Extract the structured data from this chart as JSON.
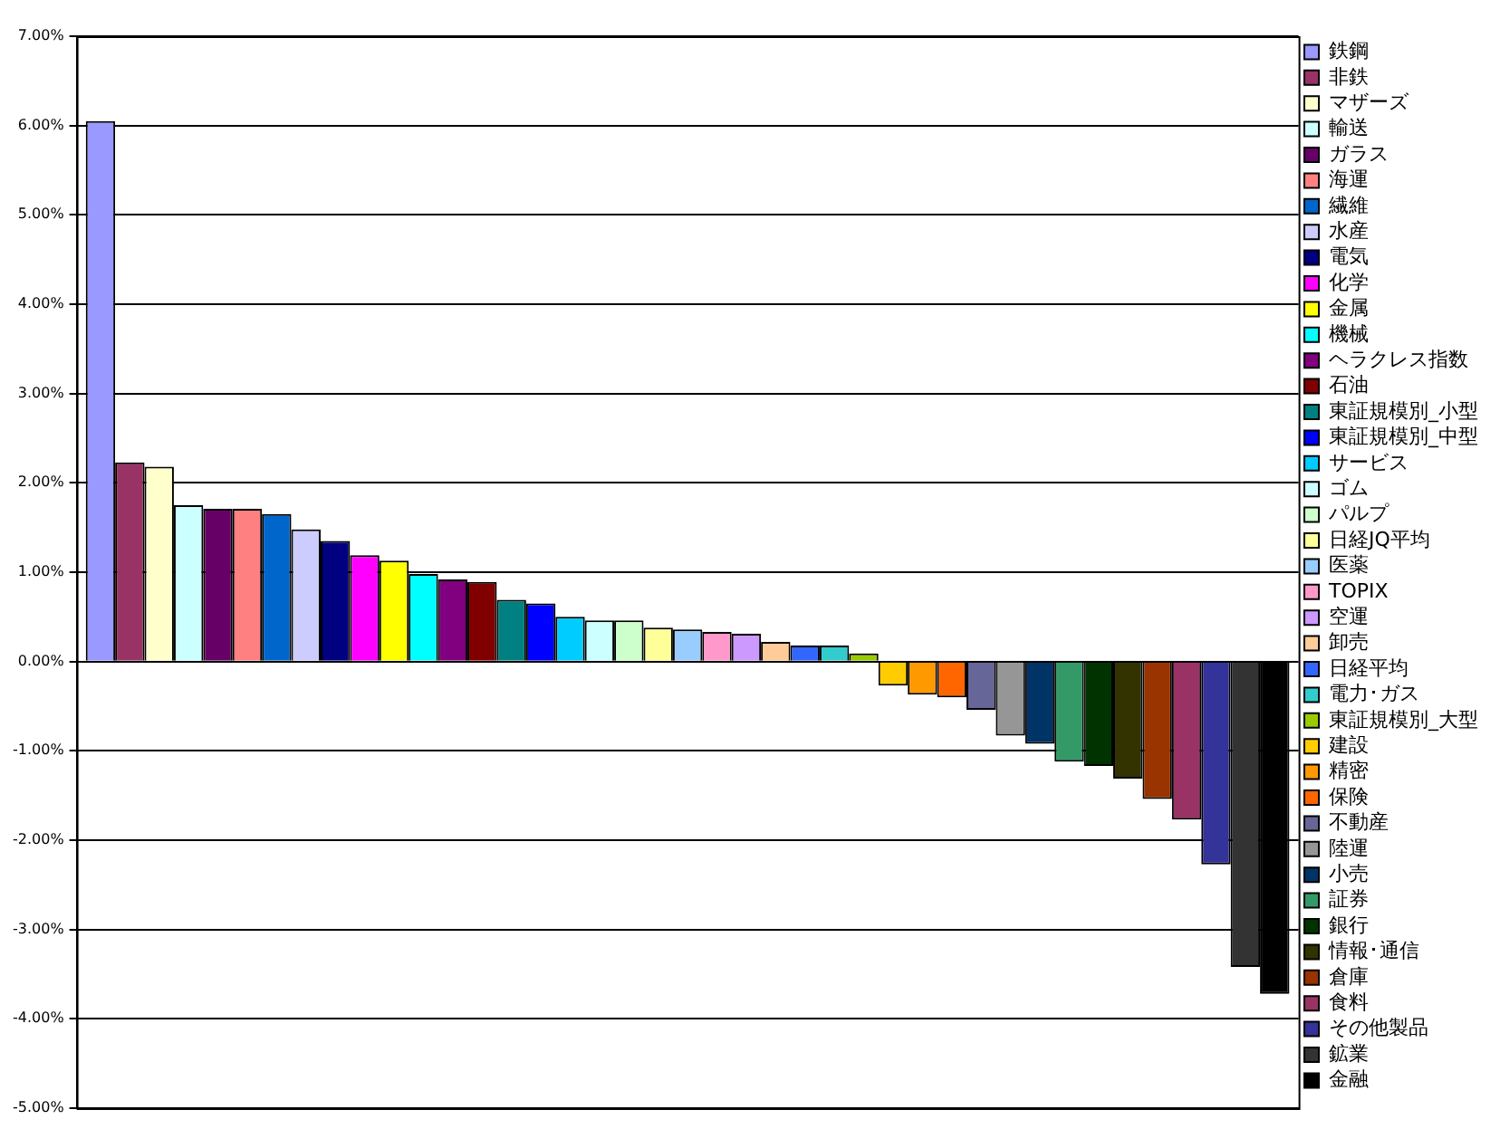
{
  "chart_data": {
    "type": "bar",
    "categories": [
      null
    ],
    "ylim": [
      -5,
      7
    ],
    "yticks": [
      {
        "value": -5,
        "label": "-5.00%"
      },
      {
        "value": -4,
        "label": "-4.00%"
      },
      {
        "value": -3,
        "label": "-3.00%"
      },
      {
        "value": -2,
        "label": "-2.00%"
      },
      {
        "value": -1,
        "label": "-1.00%"
      },
      {
        "value": 0,
        "label": "0.00%"
      },
      {
        "value": 1,
        "label": "1.00%"
      },
      {
        "value": 2,
        "label": "2.00%"
      },
      {
        "value": 3,
        "label": "3.00%"
      },
      {
        "value": 4,
        "label": "4.00%"
      },
      {
        "value": 5,
        "label": "5.00%"
      },
      {
        "value": 6,
        "label": "6.00%"
      },
      {
        "value": 7,
        "label": "7.00%"
      }
    ],
    "grid": "y",
    "legend": "right",
    "tick_labels": "y",
    "series": [
      {
        "name": "鉄鋼",
        "color": "#9999ff",
        "values": [
          6.05
        ]
      },
      {
        "name": "非鉄",
        "color": "#993366",
        "values": [
          2.23
        ]
      },
      {
        "name": "マザーズ",
        "color": "#ffffcc",
        "values": [
          2.18
        ]
      },
      {
        "name": "輸送",
        "color": "#ccffff",
        "values": [
          1.75
        ]
      },
      {
        "name": "ガラス",
        "color": "#660066",
        "values": [
          1.71
        ]
      },
      {
        "name": "海運",
        "color": "#ff8080",
        "values": [
          1.71
        ]
      },
      {
        "name": "繊維",
        "color": "#0066cc",
        "values": [
          1.65
        ]
      },
      {
        "name": "水産",
        "color": "#ccccff",
        "values": [
          1.48
        ]
      },
      {
        "name": "電気",
        "color": "#000080",
        "values": [
          1.35
        ]
      },
      {
        "name": "化学",
        "color": "#ff00ff",
        "values": [
          1.19
        ]
      },
      {
        "name": "金属",
        "color": "#ffff00",
        "values": [
          1.13
        ]
      },
      {
        "name": "機械",
        "color": "#00ffff",
        "values": [
          0.98
        ]
      },
      {
        "name": "ヘラクレス指数",
        "color": "#800080",
        "values": [
          0.92
        ]
      },
      {
        "name": "石油",
        "color": "#800000",
        "values": [
          0.89
        ]
      },
      {
        "name": "東証規模別_小型",
        "color": "#008080",
        "values": [
          0.69
        ]
      },
      {
        "name": "東証規模別_中型",
        "color": "#0000ff",
        "values": [
          0.65
        ]
      },
      {
        "name": "サービス",
        "color": "#00ccff",
        "values": [
          0.5
        ]
      },
      {
        "name": "ゴム",
        "color": "#ccffff",
        "values": [
          0.46
        ]
      },
      {
        "name": "パルプ",
        "color": "#ccffcc",
        "values": [
          0.46
        ]
      },
      {
        "name": "日経JQ平均",
        "color": "#ffff99",
        "values": [
          0.38
        ]
      },
      {
        "name": "医薬",
        "color": "#99ccff",
        "values": [
          0.36
        ]
      },
      {
        "name": "TOPIX",
        "color": "#ff99cc",
        "values": [
          0.33
        ]
      },
      {
        "name": "空運",
        "color": "#cc99ff",
        "values": [
          0.31
        ]
      },
      {
        "name": "卸売",
        "color": "#ffcc99",
        "values": [
          0.22
        ]
      },
      {
        "name": "日経平均",
        "color": "#3366ff",
        "values": [
          0.18
        ]
      },
      {
        "name": "電力･ガス",
        "color": "#33cccc",
        "values": [
          0.18
        ]
      },
      {
        "name": "東証規模別_大型",
        "color": "#99cc00",
        "values": [
          0.09
        ]
      },
      {
        "name": "建設",
        "color": "#ffcc00",
        "values": [
          -0.27
        ]
      },
      {
        "name": "精密",
        "color": "#ff9900",
        "values": [
          -0.37
        ]
      },
      {
        "name": "保険",
        "color": "#ff6600",
        "values": [
          -0.4
        ]
      },
      {
        "name": "不動産",
        "color": "#666699",
        "values": [
          -0.54
        ]
      },
      {
        "name": "陸運",
        "color": "#969696",
        "values": [
          -0.83
        ]
      },
      {
        "name": "小売",
        "color": "#003366",
        "values": [
          -0.92
        ]
      },
      {
        "name": "証券",
        "color": "#339966",
        "values": [
          -1.12
        ]
      },
      {
        "name": "銀行",
        "color": "#003300",
        "values": [
          -1.17
        ]
      },
      {
        "name": "情報･通信",
        "color": "#333300",
        "values": [
          -1.31
        ]
      },
      {
        "name": "倉庫",
        "color": "#993300",
        "values": [
          -1.54
        ]
      },
      {
        "name": "食料",
        "color": "#993366",
        "values": [
          -1.77
        ]
      },
      {
        "name": "その他製品",
        "color": "#333399",
        "values": [
          -2.27
        ]
      },
      {
        "name": "鉱業",
        "color": "#333333",
        "values": [
          -3.42
        ]
      },
      {
        "name": "金融",
        "color": "#000000",
        "values": [
          -3.72
        ]
      }
    ]
  }
}
